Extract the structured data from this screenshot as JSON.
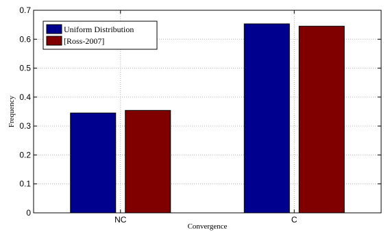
{
  "chart_data": {
    "type": "bar",
    "xlabel": "Convergence",
    "ylabel": "Frequency",
    "categories": [
      "NC",
      "C"
    ],
    "series": [
      {
        "name": "Uniform Distribution",
        "color": "#00008f",
        "values": [
          0.345,
          0.653
        ]
      },
      {
        "name": "[Ross-2007]",
        "color": "#800000",
        "values": [
          0.354,
          0.645
        ]
      }
    ],
    "ylim": [
      0,
      0.7
    ],
    "yticks": [
      0,
      0.1,
      0.2,
      0.3,
      0.4,
      0.5,
      0.6,
      0.7
    ],
    "ytick_labels": [
      "0",
      "0.1",
      "0.2",
      "0.3",
      "0.4",
      "0.5",
      "0.6",
      "0.7"
    ],
    "grid": true,
    "legend_position": "top-left"
  }
}
